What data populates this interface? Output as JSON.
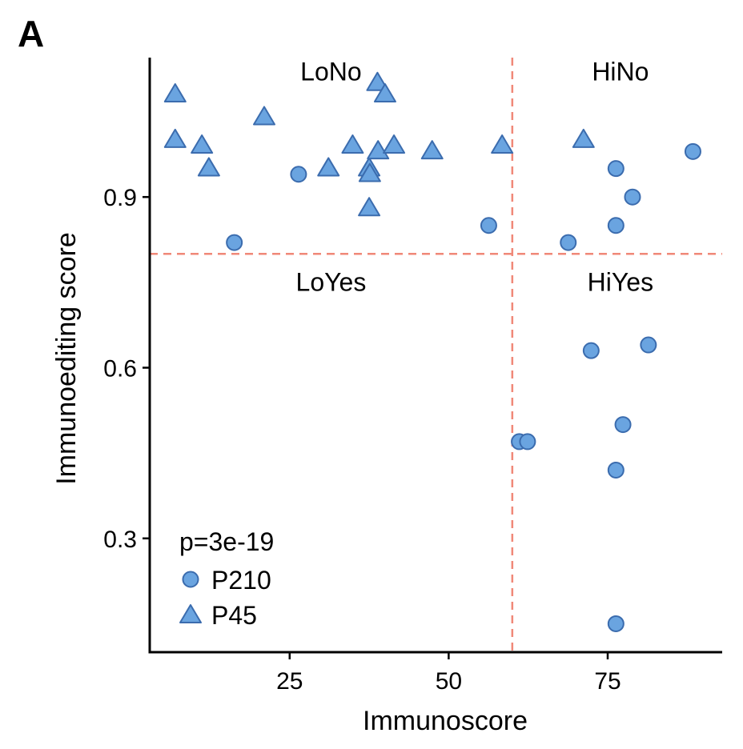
{
  "panel_label": "A",
  "colors": {
    "marker_fill": "#6aa4e0",
    "marker_stroke": "#3b6cae",
    "threshold_line": "#f08878",
    "axis": "#000000"
  },
  "chart_data": {
    "type": "scatter",
    "xlabel": "Immunoscore",
    "ylabel": "Immunoediting score",
    "xlim": [
      3,
      93
    ],
    "ylim": [
      0.1,
      1.145
    ],
    "xticks": [
      25,
      50,
      75
    ],
    "yticks": [
      0.3,
      0.6,
      0.9
    ],
    "ytick_labels": [
      "0.3",
      "0.6",
      "0.9"
    ],
    "grid": false,
    "thresholds": {
      "x": 60,
      "y": 0.8
    },
    "quadrant_labels": [
      {
        "text": "LoNo",
        "x": 31.5,
        "y": 1.105
      },
      {
        "text": "HiNo",
        "x": 77,
        "y": 1.105
      },
      {
        "text": "LoYes",
        "x": 31.5,
        "y": 0.735
      },
      {
        "text": "HiYes",
        "x": 77,
        "y": 0.735
      }
    ],
    "legend": {
      "position": "bottom-left",
      "title": "p=3e-19",
      "entries": [
        {
          "name": "P210",
          "marker": "circle"
        },
        {
          "name": "P45",
          "marker": "triangle"
        }
      ]
    },
    "series": [
      {
        "name": "P210",
        "marker": "circle",
        "points": [
          [
            16.3,
            0.82
          ],
          [
            26.4,
            0.94
          ],
          [
            56.3,
            0.85
          ],
          [
            68.8,
            0.82
          ],
          [
            76.3,
            0.95
          ],
          [
            78.9,
            0.9
          ],
          [
            76.3,
            0.85
          ],
          [
            88.4,
            0.98
          ],
          [
            72.4,
            0.63
          ],
          [
            81.4,
            0.64
          ],
          [
            61.1,
            0.47
          ],
          [
            62.4,
            0.47
          ],
          [
            77.4,
            0.5
          ],
          [
            76.3,
            0.42
          ],
          [
            76.3,
            0.15
          ]
        ]
      },
      {
        "name": "P45",
        "marker": "triangle",
        "points": [
          [
            7.0,
            1.08
          ],
          [
            7.0,
            1.0
          ],
          [
            11.2,
            0.99
          ],
          [
            12.3,
            0.95
          ],
          [
            21.0,
            1.04
          ],
          [
            31.1,
            0.95
          ],
          [
            34.9,
            0.99
          ],
          [
            37.5,
            0.95
          ],
          [
            37.5,
            0.88
          ],
          [
            37.6,
            0.94
          ],
          [
            38.8,
            1.1
          ],
          [
            38.9,
            0.98
          ],
          [
            40.0,
            1.08
          ],
          [
            41.4,
            0.99
          ],
          [
            47.4,
            0.98
          ],
          [
            58.4,
            0.99
          ],
          [
            71.2,
            1.0
          ]
        ]
      }
    ]
  }
}
